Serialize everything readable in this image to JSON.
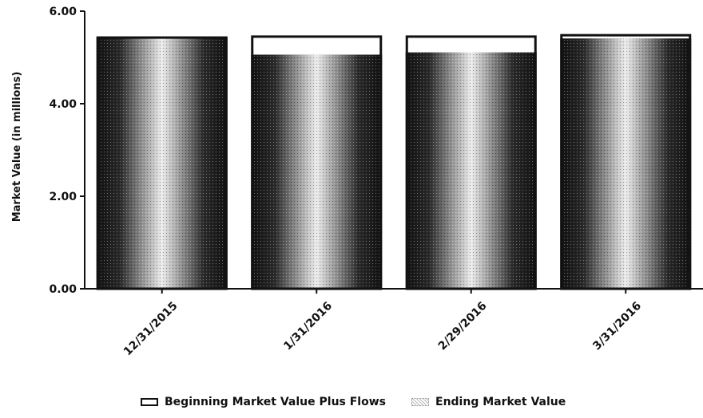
{
  "chart_data": {
    "type": "bar",
    "categories": [
      "12/31/2015",
      "1/31/2016",
      "2/29/2016",
      "3/31/2016"
    ],
    "series": [
      {
        "name": "Beginning Market Value Plus Flows",
        "values": [
          5.43,
          5.45,
          5.45,
          5.48
        ],
        "style": "outline"
      },
      {
        "name": "Ending Market Value",
        "values": [
          5.43,
          5.06,
          5.11,
          5.41
        ],
        "style": "gradient"
      }
    ],
    "ylabel": "Market Value (in millions)",
    "ylim": [
      0,
      6
    ],
    "yticks": [
      "0.00",
      "2.00",
      "4.00",
      "6.00"
    ],
    "grid": false,
    "legend_position": "bottom"
  }
}
